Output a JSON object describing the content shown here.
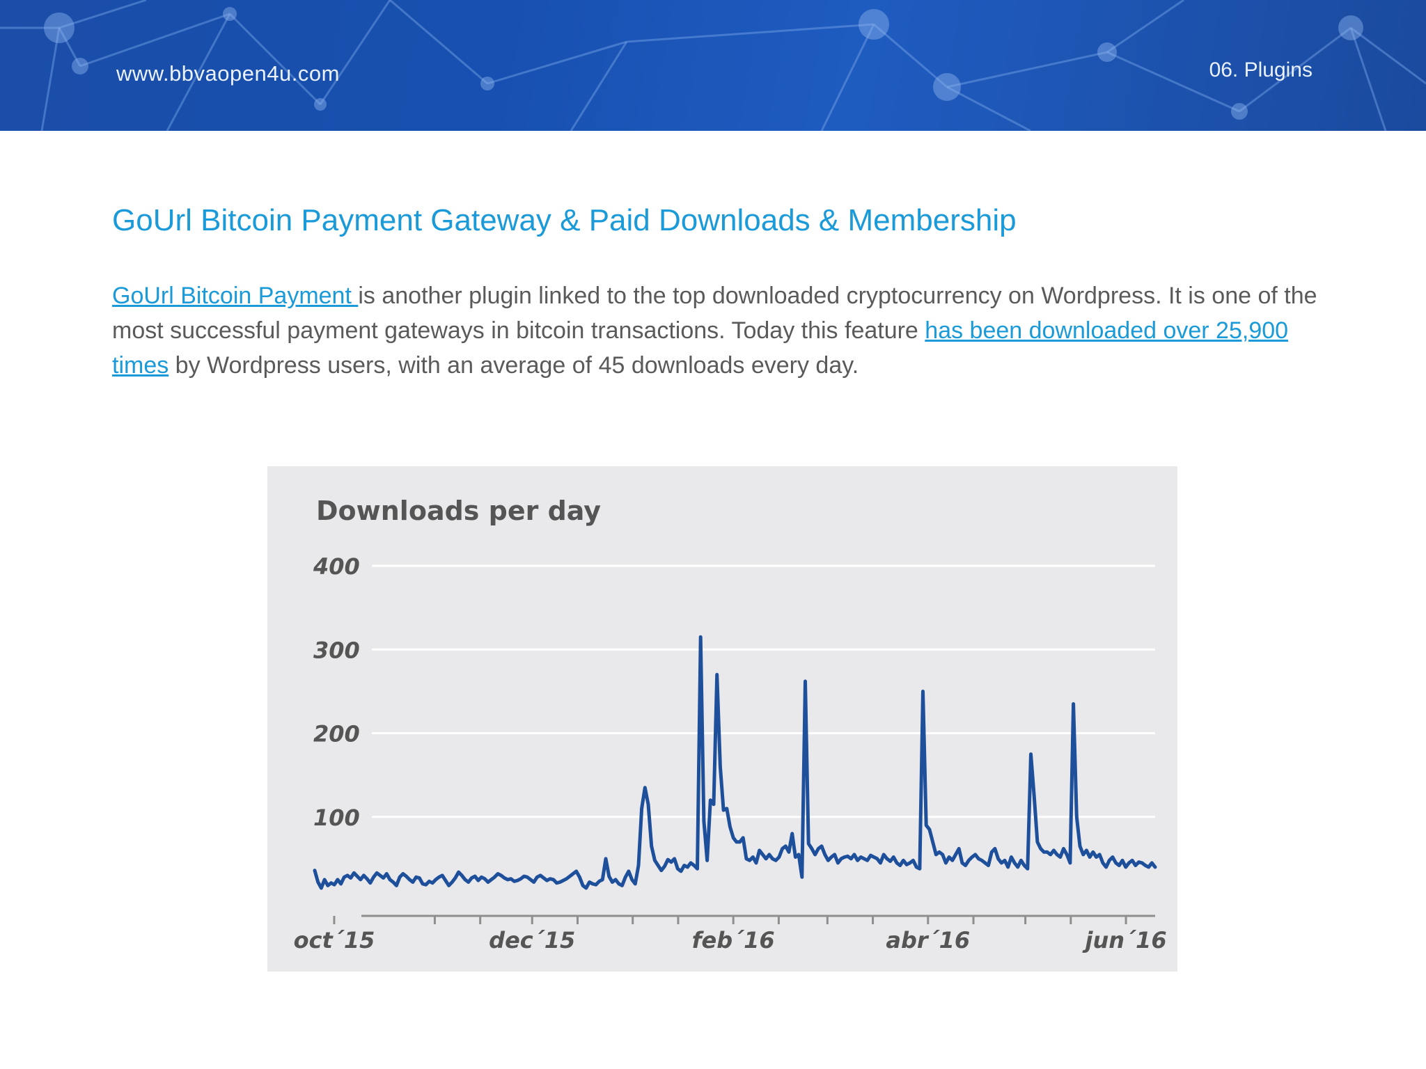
{
  "header": {
    "site_url": "www.bbvaopen4u.com",
    "section": "06. Plugins"
  },
  "article": {
    "title": "GoUrl Bitcoin Payment Gateway & Paid Downloads & Membership",
    "link1_text": "GoUrl Bitcoin Payment ",
    "text1": "is another plugin linked to the top downloaded cryptocurrency on Wordpress. It is one of the most successful payment gateways in bitcoin transactions. Today this feature ",
    "link2_text": "has been downloaded over 25,900 times",
    "text2": " by Wordpress users, with an average of 45 downloads every day."
  },
  "chart_data": {
    "type": "line",
    "title": "Downloads per day",
    "ylim": [
      0,
      400
    ],
    "yticks": [
      "400",
      "300",
      "200",
      "100"
    ],
    "yticks_values": [
      400,
      300,
      200,
      100
    ],
    "xtick_labels": [
      "oct´15",
      "dec´15",
      "feb´16",
      "abr´16",
      "jun´16"
    ],
    "x_start": "2015-09-25",
    "x_end": "2016-06-10",
    "grid": true,
    "line_color": "#1e4f9a",
    "series": [
      {
        "values": [
          36,
          22,
          15,
          25,
          18,
          21,
          19,
          25,
          20,
          28,
          30,
          27,
          33,
          29,
          25,
          30,
          26,
          21,
          28,
          33,
          30,
          27,
          32,
          25,
          22,
          18,
          28,
          32,
          29,
          25,
          22,
          28,
          27,
          20,
          19,
          23,
          21,
          25,
          28,
          30,
          24,
          18,
          22,
          27,
          34,
          30,
          25,
          22,
          27,
          29,
          24,
          28,
          26,
          22,
          25,
          28,
          32,
          30,
          27,
          25,
          26,
          23,
          24,
          26,
          29,
          28,
          25,
          22,
          28,
          30,
          27,
          24,
          26,
          25,
          21,
          22,
          24,
          26,
          29,
          32,
          35,
          28,
          18,
          15,
          22,
          20,
          19,
          23,
          25,
          50,
          29,
          22,
          25,
          20,
          18,
          28,
          35,
          25,
          20,
          42,
          110,
          135,
          115,
          65,
          48,
          42,
          36,
          41,
          49,
          46,
          50,
          38,
          35,
          42,
          40,
          45,
          42,
          38,
          315,
          95,
          48,
          120,
          115,
          270,
          160,
          108,
          110,
          88,
          75,
          70,
          70,
          75,
          50,
          48,
          52,
          45,
          60,
          55,
          50,
          55,
          50,
          48,
          52,
          62,
          65,
          58,
          80,
          52,
          55,
          28,
          262,
          68,
          62,
          55,
          62,
          65,
          55,
          48,
          52,
          55,
          45,
          50,
          52,
          53,
          50,
          55,
          48,
          52,
          50,
          48,
          54,
          52,
          50,
          45,
          55,
          50,
          47,
          52,
          45,
          42,
          48,
          43,
          45,
          48,
          40,
          38,
          250,
          90,
          85,
          70,
          55,
          58,
          55,
          45,
          52,
          48,
          55,
          62,
          45,
          42,
          48,
          52,
          55,
          50,
          48,
          45,
          42,
          58,
          62,
          50,
          45,
          48,
          40,
          52,
          45,
          40,
          48,
          42,
          38,
          175,
          125,
          70,
          62,
          58,
          58,
          55,
          60,
          55,
          52,
          62,
          55,
          45,
          235,
          100,
          65,
          55,
          60,
          52,
          58,
          52,
          55,
          45,
          40,
          48,
          52,
          45,
          42,
          48,
          40,
          45,
          48,
          42,
          46,
          45,
          42,
          40,
          45,
          40
        ]
      }
    ]
  }
}
